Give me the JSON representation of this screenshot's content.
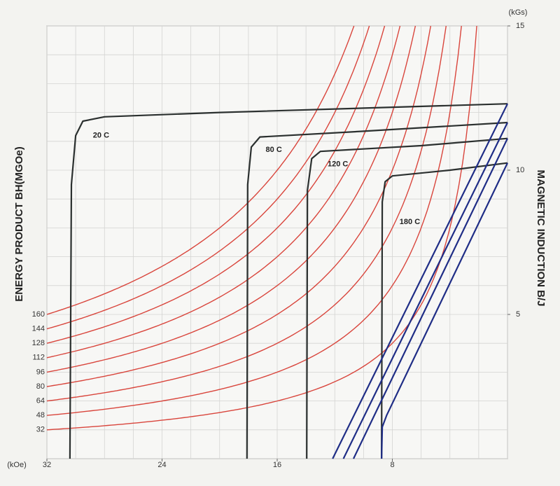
{
  "chart_data": {
    "type": "line",
    "x_label": "(kOe)",
    "y_label": "ENERGY PRODUCT BH(MGOe)",
    "y2_label": "MAGNETIC INDUCTION B/J",
    "y2_unit": "(kGs)",
    "xlim": [
      32,
      0
    ],
    "xticks": [
      32,
      24,
      16,
      8
    ],
    "xgrid": [
      0,
      2,
      4,
      6,
      8,
      10,
      12,
      14,
      16,
      18,
      20,
      22,
      24,
      26,
      28,
      30,
      32
    ],
    "y2lim": [
      0,
      15
    ],
    "y2ticks": [
      5,
      10,
      15
    ],
    "y2grid": [
      0,
      1,
      2,
      3,
      4,
      5,
      6,
      7,
      8,
      9,
      10,
      11,
      12,
      13,
      14,
      15
    ],
    "bh_curves": {
      "color": "#d9453c",
      "values": [
        32,
        48,
        64,
        80,
        96,
        112,
        128,
        144,
        160
      ]
    },
    "series": [
      {
        "name": "20 C",
        "color": "#2b302f",
        "axis": "y2",
        "x": [
          30.4,
          30.3,
          30.0,
          29.5,
          28,
          20,
          10,
          0
        ],
        "values": [
          0,
          9.5,
          11.2,
          11.7,
          11.85,
          12.0,
          12.15,
          12.3
        ]
      },
      {
        "name": "80 C",
        "color": "#2b302f",
        "axis": "y2",
        "x": [
          18.1,
          18.05,
          17.8,
          17.2,
          10,
          0
        ],
        "values": [
          0,
          9.5,
          10.8,
          11.15,
          11.35,
          11.65
        ]
      },
      {
        "name": "120 C",
        "color": "#2b302f",
        "axis": "y2",
        "x": [
          13.95,
          13.9,
          13.6,
          13,
          6,
          0
        ],
        "values": [
          0,
          9.3,
          10.4,
          10.65,
          10.85,
          11.1
        ]
      },
      {
        "name": "180 C",
        "color": "#2b302f",
        "axis": "y2",
        "x": [
          8.75,
          8.7,
          8.5,
          8,
          4,
          0
        ],
        "values": [
          0,
          8.9,
          9.6,
          9.8,
          10.0,
          10.25
        ]
      },
      {
        "color": "#1f2d86",
        "axis": "y2",
        "x": [
          12.15,
          0
        ],
        "values": [
          0,
          12.3
        ]
      },
      {
        "color": "#1f2d86",
        "axis": "y2",
        "x": [
          11.4,
          0
        ],
        "values": [
          0,
          11.65
        ]
      },
      {
        "color": "#1f2d86",
        "axis": "y2",
        "x": [
          10.7,
          0
        ],
        "values": [
          0,
          11.1
        ]
      },
      {
        "color": "#1f2d86",
        "axis": "y2",
        "x": [
          8.75,
          8.7,
          8.4,
          0
        ],
        "values": [
          0,
          1.1,
          1.5,
          10.25
        ]
      }
    ]
  }
}
